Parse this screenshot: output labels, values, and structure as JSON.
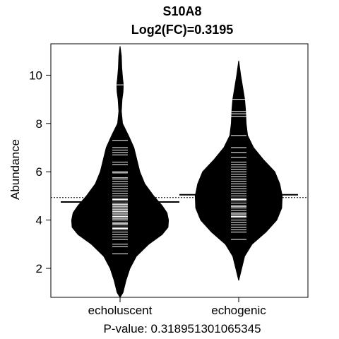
{
  "chart_data": {
    "type": "beanplot",
    "title": "S10A8",
    "subtitle": "Log2(FC)=0.3195",
    "ylabel": "Abundance",
    "footer": "P-value: 0.318951301065345",
    "ylim": [
      0.8,
      11.3
    ],
    "yticks": [
      "2",
      "4",
      "6",
      "8",
      "10"
    ],
    "overall_line": 4.93,
    "groups": [
      {
        "name": "echoluscent",
        "mean": 4.75,
        "density": [
          [
            0.8,
            0.0
          ],
          [
            1.0,
            0.06
          ],
          [
            1.5,
            0.12
          ],
          [
            2.0,
            0.2
          ],
          [
            2.5,
            0.33
          ],
          [
            3.0,
            0.58
          ],
          [
            3.4,
            0.85
          ],
          [
            3.7,
            0.97
          ],
          [
            4.0,
            0.98
          ],
          [
            4.3,
            0.95
          ],
          [
            4.6,
            0.85
          ],
          [
            5.0,
            0.68
          ],
          [
            5.5,
            0.5
          ],
          [
            6.0,
            0.4
          ],
          [
            6.5,
            0.34
          ],
          [
            7.0,
            0.28
          ],
          [
            7.5,
            0.17
          ],
          [
            8.0,
            0.05
          ],
          [
            8.5,
            0.025
          ],
          [
            9.0,
            0.04
          ],
          [
            9.3,
            0.06
          ],
          [
            9.6,
            0.065
          ],
          [
            9.9,
            0.05
          ],
          [
            10.3,
            0.035
          ],
          [
            10.8,
            0.025
          ],
          [
            11.2,
            0.0
          ]
        ],
        "points": [
          2.6,
          2.9,
          3.0,
          3.2,
          3.3,
          3.4,
          3.5,
          3.6,
          3.65,
          3.7,
          3.8,
          3.85,
          3.9,
          4.0,
          4.05,
          4.1,
          4.15,
          4.2,
          4.25,
          4.3,
          4.35,
          4.4,
          4.45,
          4.5,
          4.55,
          4.6,
          4.65,
          4.7,
          4.8,
          4.85,
          4.9,
          5.0,
          5.1,
          5.2,
          5.3,
          5.4,
          5.5,
          5.6,
          5.7,
          5.75,
          5.95,
          6.0,
          6.3,
          6.4,
          6.7,
          6.8,
          6.9,
          7.0,
          7.3,
          9.6
        ]
      },
      {
        "name": "echogenic",
        "mean": 5.05,
        "density": [
          [
            1.5,
            0.0
          ],
          [
            2.0,
            0.06
          ],
          [
            2.5,
            0.12
          ],
          [
            3.0,
            0.27
          ],
          [
            3.5,
            0.55
          ],
          [
            4.0,
            0.77
          ],
          [
            4.5,
            0.87
          ],
          [
            5.0,
            0.88
          ],
          [
            5.5,
            0.83
          ],
          [
            6.0,
            0.73
          ],
          [
            6.5,
            0.5
          ],
          [
            7.0,
            0.3
          ],
          [
            7.5,
            0.18
          ],
          [
            8.0,
            0.15
          ],
          [
            8.5,
            0.14
          ],
          [
            9.0,
            0.12
          ],
          [
            9.5,
            0.08
          ],
          [
            10.0,
            0.04
          ],
          [
            10.6,
            0.0
          ]
        ],
        "points": [
          3.2,
          3.5,
          3.6,
          3.7,
          3.8,
          3.9,
          4.0,
          4.1,
          4.15,
          4.2,
          4.25,
          4.3,
          4.4,
          4.5,
          4.55,
          4.6,
          4.7,
          4.8,
          4.85,
          4.9,
          5.0,
          5.05,
          5.1,
          5.2,
          5.3,
          5.4,
          5.5,
          5.6,
          5.7,
          5.8,
          5.9,
          6.0,
          6.1,
          6.2,
          6.3,
          6.4,
          6.6,
          6.8,
          7.0,
          7.5,
          8.3,
          8.4,
          8.5,
          9.0
        ]
      }
    ]
  }
}
